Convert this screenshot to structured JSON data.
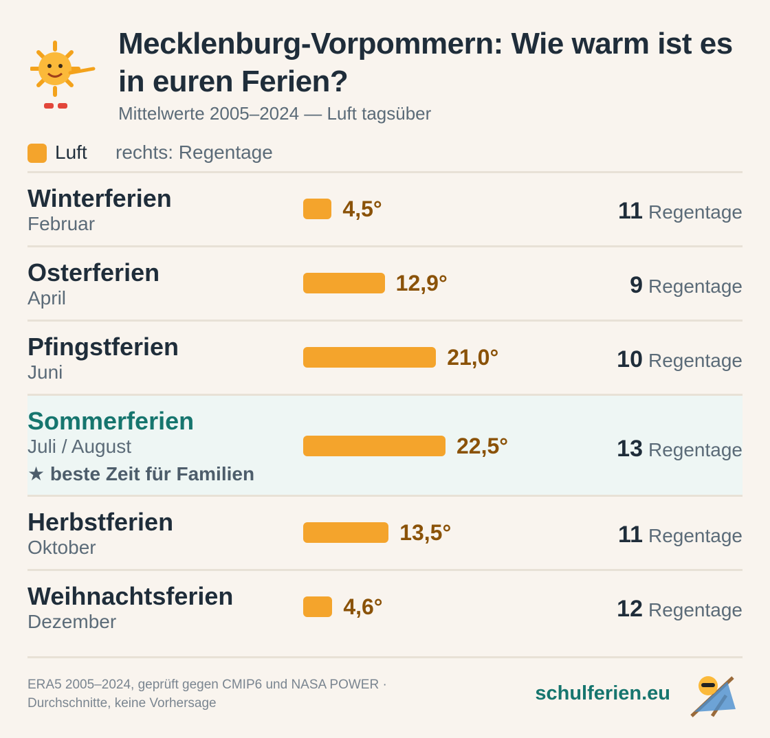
{
  "chart_data": {
    "type": "bar",
    "title": "Mecklenburg-Vorpommern: Wie warm ist es in euren Ferien?",
    "subtitle": "Mittelwerte 2005–2024 — Luft tagsüber",
    "legend_note": "rechts: Regentage",
    "categories": [
      "Winterferien",
      "Osterferien",
      "Pfingstferien",
      "Sommerferien",
      "Herbstferien",
      "Weihnachtsferien"
    ],
    "periods": [
      "Februar",
      "April",
      "Juni",
      "Juli / August",
      "Oktober",
      "Dezember"
    ],
    "series": [
      {
        "name": "Luft",
        "color": "#f4a42c",
        "values": [
          4.5,
          12.9,
          21.0,
          22.5,
          13.5,
          4.6
        ],
        "value_labels": [
          "4,5°",
          "12,9°",
          "21,0°",
          "22,5°",
          "13,5°",
          "4,6°"
        ]
      },
      {
        "name": "Regentage",
        "values": [
          11,
          9,
          10,
          13,
          11,
          12
        ]
      }
    ],
    "highlight": {
      "index": 3,
      "note": "beste Zeit für Familien"
    },
    "footer": {
      "source_line1": "ERA5 2005–2024, geprüft gegen CMIP6 und NASA POWER ·",
      "source_line2": "Durchschnitte, keine Vorhersage",
      "brand": "schulferien.eu"
    }
  }
}
